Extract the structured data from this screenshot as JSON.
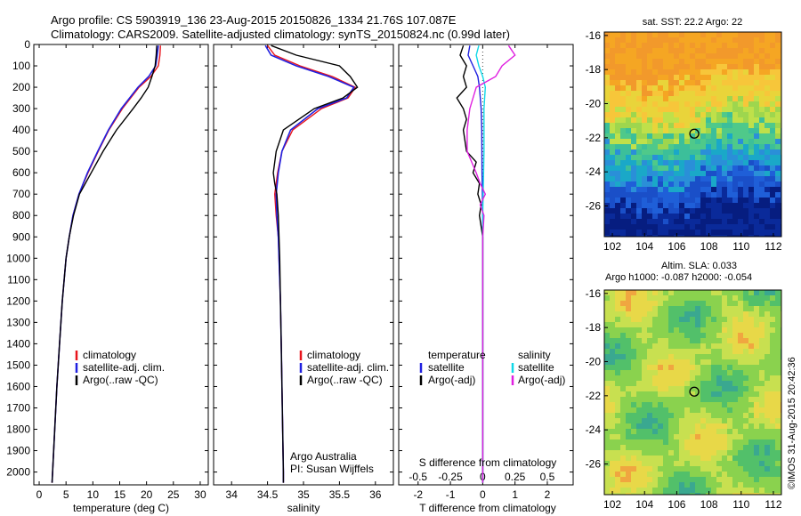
{
  "title_line1": "Argo profile: CS 5903919_136 23-Aug-2015 20150826_1334 21.76S 107.087E",
  "title_line2": "Climatology: CARS2009. Satellite-adjusted climatology: synTS_20150824.nc (0.99d later)",
  "footer": "©IMOS 31-Aug-2015 20:42:36",
  "colors": {
    "climatology": "#e8141c",
    "satellite": "#2020e0",
    "argo": "#000000",
    "sal_satellite": "#10d8e8",
    "sal_argo": "#e020e0",
    "dotted_zero": "#444444"
  },
  "chart_data": [
    {
      "type": "line",
      "panel": "temperature",
      "xlabel": "temperature (deg C)",
      "ylabel": "",
      "xlim": [
        -1,
        31.5
      ],
      "ylim": [
        2060,
        0
      ],
      "x_ticks": [
        0,
        5,
        10,
        15,
        20,
        25,
        30
      ],
      "y_ticks": [
        0,
        100,
        200,
        300,
        400,
        500,
        600,
        700,
        800,
        900,
        1000,
        1100,
        1200,
        1300,
        1400,
        1500,
        1600,
        1700,
        1800,
        1900,
        2000
      ],
      "legend": [
        "climatology",
        "satellite-adj. clim.",
        "Argo(..raw -QC)"
      ],
      "series": [
        {
          "name": "climatology",
          "depth": [
            5,
            50,
            100,
            150,
            200,
            300,
            400,
            500,
            600,
            700,
            800,
            900,
            1000,
            1200,
            1400,
            1600,
            1800,
            2000,
            2050
          ],
          "values": [
            22.6,
            22.5,
            22.2,
            20.8,
            18.6,
            15.5,
            13.0,
            11.0,
            9.1,
            7.4,
            6.3,
            5.6,
            5.0,
            4.3,
            3.8,
            3.3,
            2.9,
            2.5,
            2.4
          ]
        },
        {
          "name": "satellite-adj. clim.",
          "depth": [
            5,
            50,
            100,
            150,
            200,
            300,
            400,
            500,
            600,
            700,
            800,
            900,
            1000,
            1200,
            1400,
            1600,
            1800,
            2000,
            2050
          ],
          "values": [
            22.2,
            22.0,
            21.7,
            20.4,
            18.4,
            15.3,
            12.9,
            10.9,
            9.0,
            7.4,
            6.3,
            5.6,
            5.0,
            4.3,
            3.8,
            3.3,
            2.9,
            2.5,
            2.4
          ]
        },
        {
          "name": "Argo(..raw -QC)",
          "depth": [
            5,
            50,
            100,
            150,
            200,
            250,
            300,
            400,
            500,
            600,
            700,
            800,
            900,
            1000,
            1200,
            1400,
            1600,
            1800,
            2000,
            2050
          ],
          "values": [
            21.9,
            21.8,
            21.6,
            21.0,
            20.3,
            19.0,
            17.5,
            14.4,
            11.9,
            9.7,
            7.5,
            6.4,
            5.6,
            5.0,
            4.3,
            3.8,
            3.3,
            2.9,
            2.5,
            2.4
          ]
        }
      ]
    },
    {
      "type": "line",
      "panel": "salinity",
      "xlabel": "salinity",
      "xlim": [
        33.75,
        36.25
      ],
      "ylim": [
        2060,
        0
      ],
      "x_ticks": [
        34,
        34.5,
        35,
        35.5,
        36
      ],
      "legend": [
        "climatology",
        "satellite-adj. clim.",
        "Argo(..raw -QC)"
      ],
      "annotation": [
        "Argo Australia",
        "PI: Susan Wijffels"
      ],
      "series": [
        {
          "name": "climatology",
          "depth": [
            5,
            50,
            100,
            150,
            200,
            250,
            300,
            400,
            500,
            600,
            700,
            800,
            900,
            1000,
            1200,
            1400,
            1600,
            1800,
            2000,
            2050
          ],
          "values": [
            34.5,
            34.6,
            34.95,
            35.4,
            35.72,
            35.62,
            35.25,
            34.85,
            34.7,
            34.64,
            34.6,
            34.62,
            34.65,
            34.66,
            34.68,
            34.69,
            34.7,
            34.71,
            34.72,
            34.72
          ]
        },
        {
          "name": "satellite-adj. clim.",
          "depth": [
            5,
            50,
            100,
            150,
            200,
            250,
            300,
            400,
            500,
            600,
            700,
            800,
            900,
            1000,
            1200,
            1400,
            1600,
            1800,
            2000,
            2050
          ],
          "values": [
            34.47,
            34.55,
            34.9,
            35.35,
            35.7,
            35.6,
            35.2,
            34.82,
            34.7,
            34.65,
            34.62,
            34.63,
            34.65,
            34.66,
            34.68,
            34.69,
            34.7,
            34.71,
            34.72,
            34.72
          ]
        },
        {
          "name": "Argo(..raw -QC)",
          "depth": [
            5,
            50,
            100,
            150,
            200,
            250,
            300,
            400,
            500,
            600,
            650,
            700,
            800,
            900,
            1000,
            1200,
            1400,
            1600,
            1800,
            2000,
            2050
          ],
          "values": [
            34.55,
            34.9,
            35.5,
            35.65,
            35.75,
            35.55,
            35.15,
            34.72,
            34.62,
            34.58,
            34.6,
            34.63,
            34.65,
            34.66,
            34.67,
            34.68,
            34.69,
            34.7,
            34.71,
            34.72,
            34.72
          ]
        }
      ]
    },
    {
      "type": "line",
      "panel": "difference",
      "xlabel": "T difference from climatology",
      "xlabel2": "S difference from climatology",
      "xlim": [
        -2.6,
        2.8
      ],
      "ylim": [
        2060,
        0
      ],
      "x_ticks": [
        -2,
        -1,
        0,
        1,
        2
      ],
      "x_ticks_S": [
        -0.5,
        -0.25,
        0,
        0.25,
        0.5
      ],
      "x_tick_labels_S": [
        "-0.5",
        "-0.25",
        "0",
        "0.25",
        "0.5"
      ],
      "legend_temperature": [
        "temperature",
        "satellite",
        "Argo(-adj)"
      ],
      "legend_salinity": [
        "salinity",
        "satellite",
        "Argo(-adj)"
      ],
      "series": [
        {
          "name": "temperature satellite",
          "depth": [
            5,
            50,
            100,
            150,
            200,
            300,
            400,
            600,
            800,
            1000,
            1500,
            2000,
            2050
          ],
          "values": [
            -0.4,
            -0.45,
            -0.3,
            -0.15,
            -0.1,
            -0.05,
            -0.03,
            -0.02,
            0,
            0,
            0,
            0,
            0
          ]
        },
        {
          "name": "temperature Argo(-adj)",
          "depth": [
            5,
            50,
            100,
            150,
            200,
            250,
            300,
            350,
            400,
            500,
            550,
            600,
            650,
            700,
            750,
            800,
            900,
            1000,
            1200,
            1500,
            2000,
            2050
          ],
          "values": [
            -0.6,
            -0.7,
            -0.5,
            -0.6,
            -0.5,
            -0.8,
            -0.6,
            -0.5,
            -0.6,
            -0.5,
            -0.2,
            -0.3,
            -0.1,
            -0.15,
            -0.05,
            -0.1,
            0,
            0,
            0,
            0,
            0,
            0
          ]
        },
        {
          "name": "salinity satellite",
          "depth": [
            5,
            50,
            100,
            150,
            200,
            300,
            400,
            500,
            800,
            1000,
            1500,
            2000,
            2050
          ],
          "values": [
            -0.03,
            -0.05,
            -0.03,
            0,
            0.02,
            0.01,
            0.01,
            0.01,
            0,
            0,
            0,
            0,
            0
          ]
        },
        {
          "name": "salinity Argo(-adj)",
          "depth": [
            5,
            50,
            100,
            150,
            200,
            300,
            400,
            500,
            600,
            650,
            700,
            750,
            800,
            900,
            1000,
            1200,
            1500,
            2000,
            2050
          ],
          "values": [
            0.2,
            0.25,
            0.15,
            0.1,
            -0.05,
            -0.1,
            -0.12,
            -0.12,
            -0.05,
            -0.02,
            0.02,
            -0.02,
            0.01,
            0,
            0,
            0,
            0,
            0,
            0
          ]
        }
      ]
    },
    {
      "type": "heatmap",
      "panel": "map_sst",
      "title": "sat. SST: 22.2  Argo: 22",
      "xlim": [
        101.5,
        112.5
      ],
      "ylim": [
        -27.8,
        -15.8
      ],
      "x_ticks": [
        102,
        104,
        106,
        108,
        110,
        112
      ],
      "y_ticks": [
        -16,
        -18,
        -20,
        -22,
        -24,
        -26
      ],
      "argo_position": {
        "lon": 107.087,
        "lat": -21.76
      }
    },
    {
      "type": "heatmap",
      "panel": "map_sla",
      "title_lines": [
        "Altim. SLA: 0.033",
        "Argo h1000: -0.087 h2000: -0.054"
      ],
      "xlim": [
        101.5,
        112.5
      ],
      "ylim": [
        -27.8,
        -15.8
      ],
      "x_ticks": [
        102,
        104,
        106,
        108,
        110,
        112
      ],
      "y_ticks": [
        -16,
        -18,
        -20,
        -22,
        -24,
        -26
      ],
      "argo_position": {
        "lon": 107.087,
        "lat": -21.76
      }
    }
  ]
}
